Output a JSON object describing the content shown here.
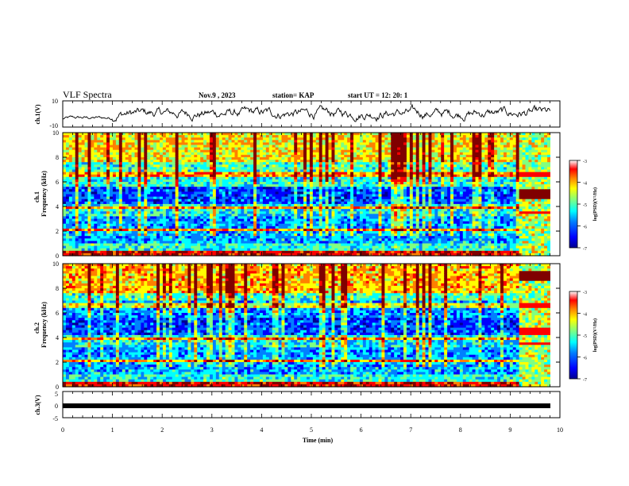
{
  "header": {
    "title": "VLF Spectra",
    "date": "Nov.9 , 2023",
    "station": "station= KAP",
    "start": "start UT = 12: 20: 1"
  },
  "chart_data": [
    {
      "type": "line",
      "name": "ch1-waveform",
      "ylabel": "ch.1(V)",
      "ylim": [
        -10,
        10
      ],
      "yticks": [
        "10",
        "-10"
      ],
      "xlim": [
        0,
        10
      ]
    },
    {
      "type": "heatmap",
      "name": "ch1-spectrogram",
      "ylabel": "Frequency (kHz)",
      "channel_label": "ch.1",
      "ylim": [
        0,
        10
      ],
      "yticks": [
        "0",
        "2",
        "4",
        "6",
        "8",
        "10"
      ],
      "xlim": [
        0,
        10
      ],
      "colorbar": {
        "label": "log(PSD)(V²/Hz)",
        "range": [
          -7,
          -3
        ],
        "ticks": [
          "-3",
          "-4",
          "-5",
          "-6",
          "-7"
        ]
      }
    },
    {
      "type": "heatmap",
      "name": "ch2-spectrogram",
      "ylabel": "Frequency (kHz)",
      "channel_label": "ch.2",
      "ylim": [
        0,
        10
      ],
      "yticks": [
        "0",
        "2",
        "4",
        "6",
        "8",
        "10"
      ],
      "xlim": [
        0,
        10
      ],
      "colorbar": {
        "label": "log(PSD)(V²/Hz)",
        "range": [
          -7,
          -3
        ],
        "ticks": [
          "-3",
          "-4",
          "-5",
          "-6",
          "-7"
        ]
      }
    },
    {
      "type": "line",
      "name": "ch3-waveform",
      "ylabel": "ch.3(V)",
      "ylim": [
        -5,
        5
      ],
      "yticks": [
        "5",
        "0",
        "-5"
      ],
      "xlim": [
        0,
        10
      ]
    }
  ],
  "xaxis": {
    "label": "Time (min)",
    "ticks": [
      "0",
      "1",
      "2",
      "3",
      "4",
      "5",
      "6",
      "7",
      "8",
      "9",
      "10"
    ],
    "range": [
      0,
      10
    ]
  },
  "colors": {
    "jet": [
      "#00008f",
      "#0000ff",
      "#0080ff",
      "#00ffff",
      "#80ff80",
      "#ffff00",
      "#ff8000",
      "#ff0000",
      "#800000"
    ]
  }
}
